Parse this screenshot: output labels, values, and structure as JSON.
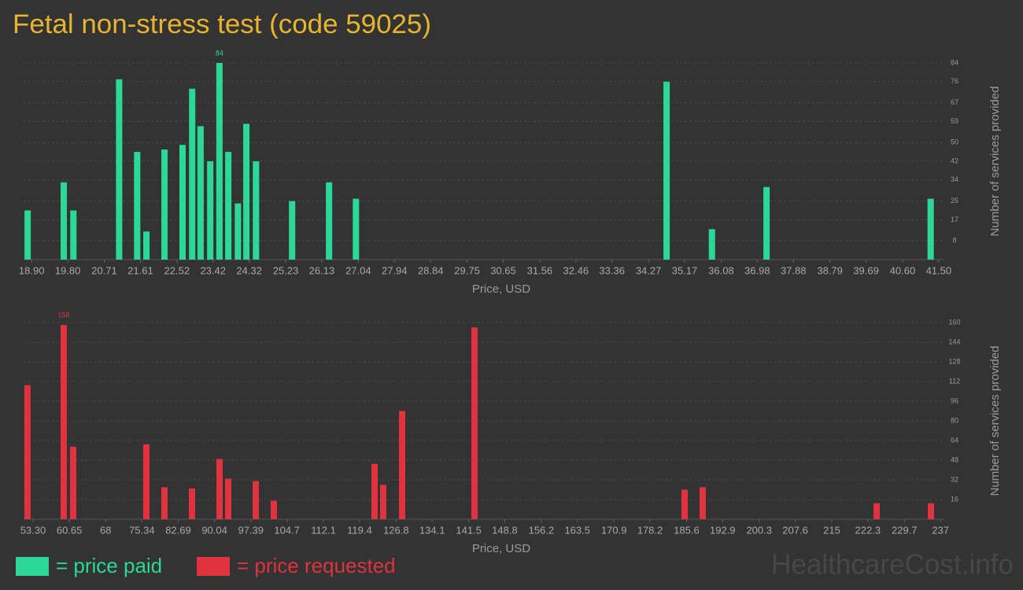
{
  "title": "Fetal non-stress test (code 59025)",
  "watermark": "HealthcareCost.info",
  "chart_data": [
    {
      "type": "bar",
      "x_label": "Price, USD",
      "y_label": "Number of services provided",
      "grid": true,
      "xlim": [
        18.7,
        41.64
      ],
      "ylim": [
        0,
        84
      ],
      "yticks": [
        8,
        17,
        25,
        34,
        42,
        50,
        59,
        67,
        76,
        84
      ],
      "xticks": [
        {
          "value": 18.9,
          "label": "18.90"
        },
        {
          "value": 19.8,
          "label": "19.80"
        },
        20.71,
        21.61,
        22.52,
        23.42,
        24.32,
        25.23,
        26.13,
        27.04,
        27.94,
        28.84,
        29.75,
        30.65,
        31.56,
        32.46,
        33.36,
        34.27,
        35.17,
        36.08,
        36.98,
        37.88,
        38.79,
        39.69,
        {
          "value": 40.6,
          "label": "40.60"
        },
        {
          "value": 41.5,
          "label": "41.50"
        }
      ],
      "x": [
        18.8,
        19.7,
        19.94,
        21.08,
        21.53,
        21.76,
        22.21,
        22.66,
        22.9,
        23.11,
        23.35,
        23.58,
        23.8,
        24.04,
        24.25,
        24.49,
        25.39,
        26.31,
        26.98,
        34.72,
        35.85,
        37.21,
        41.3
      ],
      "series": [
        {
          "name": "= price paid",
          "color": "#2bd898",
          "values": [
            21,
            33,
            21,
            77,
            46,
            12,
            47,
            49,
            73,
            57,
            42,
            84,
            46,
            24,
            58,
            42,
            25,
            33,
            26,
            76,
            13,
            31,
            26
          ]
        }
      ]
    },
    {
      "type": "bar",
      "x_label": "Price, USD",
      "y_label": "Number of services provided",
      "grid": true,
      "xlim": [
        51.39,
        237.78
      ],
      "ylim": [
        0,
        160
      ],
      "yticks": [
        16,
        32,
        48,
        64,
        80,
        96,
        112,
        128,
        144,
        160
      ],
      "xticks": [
        {
          "value": 53.3,
          "label": "53.30"
        },
        60.65,
        68,
        75.34,
        82.69,
        90.04,
        97.39,
        104.7,
        112.1,
        119.4,
        126.8,
        134.1,
        141.5,
        148.8,
        156.2,
        163.5,
        170.9,
        178.2,
        185.6,
        192.9,
        200.3,
        207.6,
        215,
        222.3,
        229.7,
        237
      ],
      "x": [
        52.18,
        59.51,
        61.42,
        76.24,
        79.9,
        85.48,
        91.06,
        92.81,
        98.39,
        102.05,
        122.44,
        124.19,
        128.02,
        142.67,
        185.21,
        188.87,
        224.08,
        235.08
      ],
      "series": [
        {
          "name": "= price requested",
          "color": "#e0323f",
          "values": [
            109,
            158,
            59,
            61,
            26,
            25,
            49,
            33,
            31,
            15,
            45,
            28,
            88,
            156,
            24,
            26,
            13,
            13
          ]
        }
      ]
    }
  ]
}
